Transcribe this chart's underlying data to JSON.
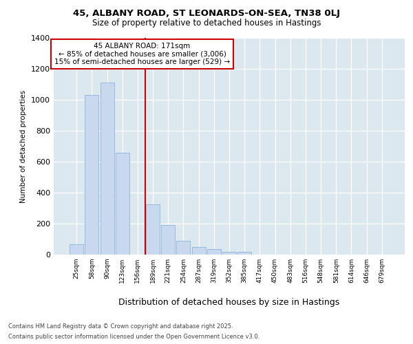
{
  "title_line1": "45, ALBANY ROAD, ST LEONARDS-ON-SEA, TN38 0LJ",
  "title_line2": "Size of property relative to detached houses in Hastings",
  "xlabel": "Distribution of detached houses by size in Hastings",
  "ylabel": "Number of detached properties",
  "categories": [
    "25sqm",
    "58sqm",
    "90sqm",
    "123sqm",
    "156sqm",
    "189sqm",
    "221sqm",
    "254sqm",
    "287sqm",
    "319sqm",
    "352sqm",
    "385sqm",
    "417sqm",
    "450sqm",
    "483sqm",
    "516sqm",
    "548sqm",
    "581sqm",
    "614sqm",
    "646sqm",
    "679sqm"
  ],
  "values": [
    65,
    1030,
    1110,
    660,
    0,
    325,
    190,
    90,
    50,
    35,
    20,
    20,
    0,
    0,
    0,
    0,
    0,
    0,
    0,
    0,
    0
  ],
  "bar_color": "#c8d8ee",
  "bar_edgecolor": "#9ab8d8",
  "vline_color": "#cc0000",
  "vline_x_idx": 4.5,
  "annotation_line1": "45 ALBANY ROAD: 171sqm",
  "annotation_line2": "← 85% of detached houses are smaller (3,006)",
  "annotation_line3": "15% of semi-detached houses are larger (529) →",
  "annotation_box_facecolor": "white",
  "annotation_box_edgecolor": "#cc0000",
  "ylim": [
    0,
    1400
  ],
  "yticks": [
    0,
    200,
    400,
    600,
    800,
    1000,
    1200,
    1400
  ],
  "plot_bg_color": "#dce8f0",
  "fig_bg_color": "#ffffff",
  "footer_line1": "Contains HM Land Registry data © Crown copyright and database right 2025.",
  "footer_line2": "Contains public sector information licensed under the Open Government Licence v3.0.",
  "figsize": [
    6.0,
    5.0
  ],
  "dpi": 100
}
